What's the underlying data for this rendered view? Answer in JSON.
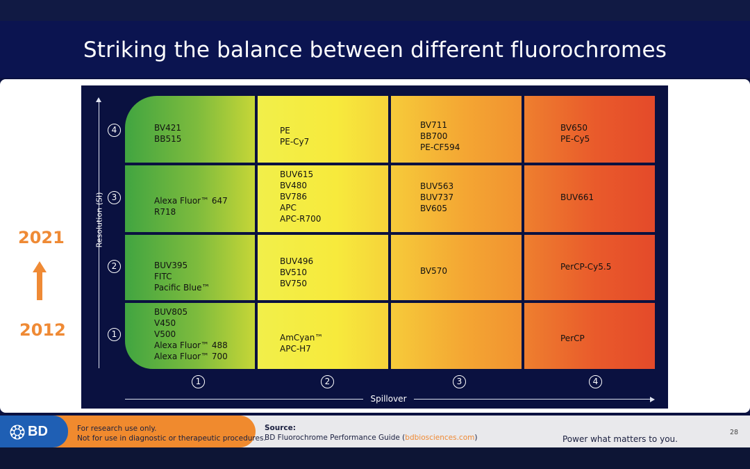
{
  "slide": {
    "title": "Striking the balance between different fluorochromes",
    "years": {
      "top": "2021",
      "bottom": "2012"
    },
    "colors": {
      "background": "#0b1450",
      "accent": "#ef8a35",
      "footer_blue": "#1f5fb4"
    }
  },
  "chart": {
    "y_axis_label": "Resolution (SI)",
    "x_axis_label": "Spillover",
    "y_ticks": [
      "4",
      "3",
      "2",
      "1"
    ],
    "x_ticks": [
      "1",
      "2",
      "3",
      "4"
    ],
    "rows": [
      {
        "cells": [
          {
            "lines": [
              "BV421",
              "BB515"
            ]
          },
          {
            "lines": [
              "PE",
              "PE-Cy7"
            ]
          },
          {
            "lines": [
              "BV711",
              "BB700",
              "PE-CF594"
            ]
          },
          {
            "lines": [
              "BV650",
              "PE-Cy5"
            ]
          }
        ]
      },
      {
        "cells": [
          {
            "lines": [
              "Alexa Fluor™ 647",
              "R718"
            ]
          },
          {
            "lines": [
              "BUV615",
              "BV480",
              "BV786",
              "APC",
              "APC-R700"
            ]
          },
          {
            "lines": [
              "BUV563",
              "BUV737",
              "BV605"
            ]
          },
          {
            "lines": [
              "BUV661"
            ]
          }
        ]
      },
      {
        "cells": [
          {
            "lines": [
              "BUV395",
              "FITC",
              "Pacific Blue™"
            ]
          },
          {
            "lines": [
              "BUV496",
              "BV510",
              "BV750"
            ]
          },
          {
            "lines": [
              "BV570"
            ]
          },
          {
            "lines": [
              "PerCP-Cy5.5"
            ]
          }
        ]
      },
      {
        "cells": [
          {
            "lines": [
              "BUV805",
              "V450",
              "V500",
              "Alexa Fluor™ 488",
              "Alexa Fluor™ 700"
            ]
          },
          {
            "lines": [
              "AmCyan™",
              "APC-H7"
            ]
          },
          {
            "lines": []
          },
          {
            "lines": [
              "PerCP"
            ]
          }
        ]
      }
    ]
  },
  "footer": {
    "logo_text": "BD",
    "disclaimer_line1": "For research use only.",
    "disclaimer_line2": "Not for use in diagnostic or therapeutic procedures.",
    "source_label": "Source:",
    "source_text": "BD Fluorochrome Performance Guide (",
    "source_link": "bdbiosciences.com",
    "source_close": ")",
    "tagline": "Power what matters to you.",
    "page_number": "28"
  }
}
